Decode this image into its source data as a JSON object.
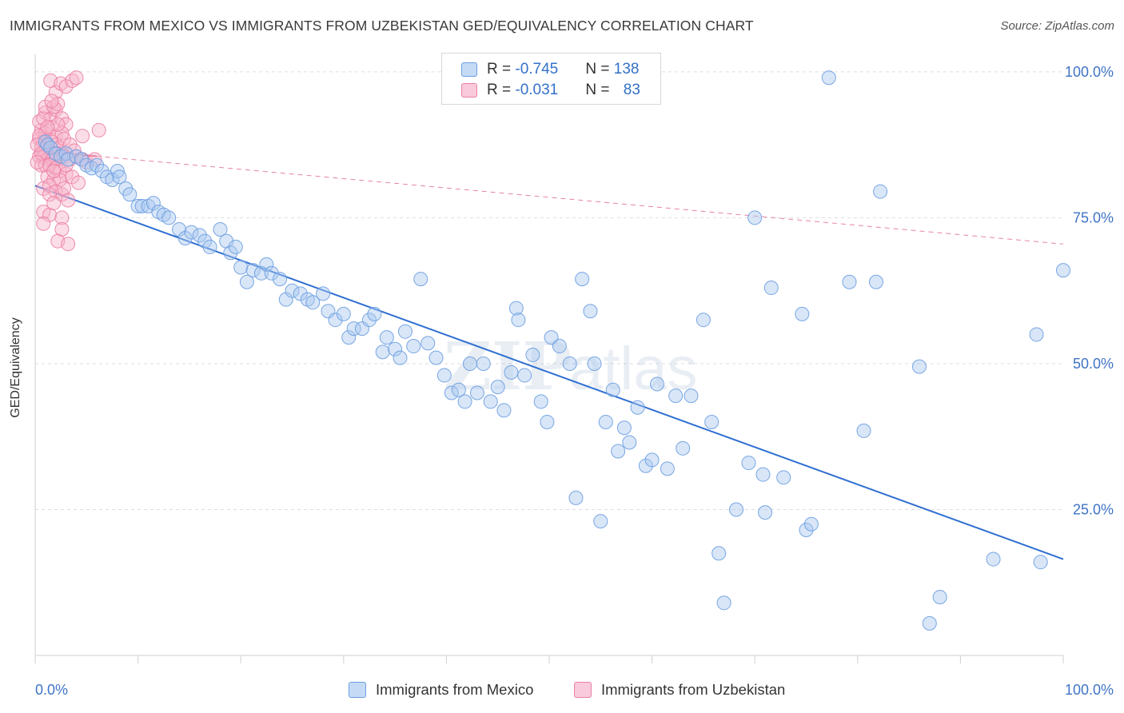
{
  "title": "IMMIGRANTS FROM MEXICO VS IMMIGRANTS FROM UZBEKISTAN GED/EQUIVALENCY CORRELATION CHART",
  "source": "Source: ZipAtlas.com",
  "watermark": {
    "zip": "ZIP",
    "atlas": "atlas"
  },
  "legend": {
    "rows": [
      {
        "r_label": "R = ",
        "r_value": "-0.745",
        "n_label": "N = ",
        "n_value": "138"
      },
      {
        "r_label": "R = ",
        "r_value": "-0.031",
        "n_label": "N = ",
        "n_value": "83"
      }
    ]
  },
  "colors": {
    "blue_fill": "#a9c8ef",
    "blue_stroke": "#6b9de0",
    "blue_line": "#2f6fd1",
    "pink_fill": "#f6b3c9",
    "pink_stroke": "#eb7fa3",
    "pink_line": "#e05a8a",
    "grid": "#dddddd",
    "tick_label": "#3f74c6"
  },
  "chart_data": {
    "type": "scatter",
    "title": "IMMIGRANTS FROM MEXICO VS IMMIGRANTS FROM UZBEKISTAN GED/EQUIVALENCY CORRELATION CHART",
    "xlabel": "",
    "ylabel": "GED/Equivalency",
    "xlim": [
      0,
      100
    ],
    "ylim": [
      0,
      103
    ],
    "x_tick_labels": [
      "0.0%",
      "100.0%"
    ],
    "y_ticks": [
      25,
      50,
      75,
      100
    ],
    "y_tick_labels": [
      "25.0%",
      "50.0%",
      "75.0%",
      "100.0%"
    ],
    "grid": true,
    "legend_position": "bottom-center",
    "series": [
      {
        "name": "Immigrants from Mexico",
        "color": "#a9c8ef",
        "trend": {
          "x": [
            0,
            100
          ],
          "y": [
            80.5,
            16.5
          ],
          "style": "solid"
        },
        "points": [
          [
            1,
            88
          ],
          [
            1.2,
            87.5
          ],
          [
            1.5,
            87
          ],
          [
            2,
            86
          ],
          [
            2.5,
            85.5
          ],
          [
            3,
            86
          ],
          [
            3.2,
            85
          ],
          [
            4,
            85.5
          ],
          [
            4.5,
            85
          ],
          [
            5,
            84
          ],
          [
            5.5,
            83.5
          ],
          [
            6,
            84
          ],
          [
            6.5,
            83
          ],
          [
            7,
            82
          ],
          [
            7.5,
            81.5
          ],
          [
            8,
            83
          ],
          [
            8.2,
            82
          ],
          [
            8.8,
            80
          ],
          [
            9.2,
            79
          ],
          [
            10,
            77
          ],
          [
            10.4,
            77
          ],
          [
            11,
            77
          ],
          [
            11.5,
            77.5
          ],
          [
            12,
            76
          ],
          [
            12.5,
            75.5
          ],
          [
            13,
            75
          ],
          [
            14,
            73
          ],
          [
            14.6,
            71.5
          ],
          [
            15.2,
            72.5
          ],
          [
            16,
            72
          ],
          [
            16.5,
            71
          ],
          [
            17,
            70
          ],
          [
            18,
            73
          ],
          [
            18.6,
            71
          ],
          [
            19,
            69
          ],
          [
            19.5,
            70
          ],
          [
            20,
            66.5
          ],
          [
            20.6,
            64
          ],
          [
            21.2,
            66
          ],
          [
            22,
            65.5
          ],
          [
            22.5,
            67
          ],
          [
            23,
            65.5
          ],
          [
            23.8,
            64.5
          ],
          [
            24.4,
            61
          ],
          [
            25,
            62.5
          ],
          [
            25.8,
            62
          ],
          [
            26.5,
            61
          ],
          [
            27,
            60.5
          ],
          [
            28,
            62
          ],
          [
            28.5,
            59
          ],
          [
            29.2,
            57.5
          ],
          [
            30,
            58.5
          ],
          [
            30.5,
            54.5
          ],
          [
            31,
            56
          ],
          [
            31.8,
            56
          ],
          [
            32.5,
            57.5
          ],
          [
            33,
            58.5
          ],
          [
            33.8,
            52
          ],
          [
            34.2,
            54.5
          ],
          [
            35,
            52.5
          ],
          [
            35.5,
            51
          ],
          [
            36,
            55.5
          ],
          [
            36.8,
            53
          ],
          [
            37.5,
            64.5
          ],
          [
            38.2,
            53.5
          ],
          [
            39,
            51
          ],
          [
            39.8,
            48
          ],
          [
            40.5,
            45
          ],
          [
            41.2,
            45.5
          ],
          [
            41.8,
            43.5
          ],
          [
            42.3,
            50
          ],
          [
            43,
            45
          ],
          [
            43.6,
            50
          ],
          [
            44.3,
            43.5
          ],
          [
            45,
            46
          ],
          [
            45.6,
            42
          ],
          [
            46.3,
            48.5
          ],
          [
            46.8,
            59.5
          ],
          [
            47,
            57.5
          ],
          [
            47.6,
            48
          ],
          [
            48.4,
            51.5
          ],
          [
            49.2,
            43.5
          ],
          [
            49.8,
            40
          ],
          [
            50.2,
            54.5
          ],
          [
            51,
            53
          ],
          [
            52,
            50
          ],
          [
            52.6,
            27
          ],
          [
            53.2,
            64.5
          ],
          [
            54,
            59
          ],
          [
            54.4,
            50
          ],
          [
            55,
            23
          ],
          [
            55.5,
            40
          ],
          [
            56.2,
            45.5
          ],
          [
            56.7,
            35
          ],
          [
            57.3,
            39
          ],
          [
            57.8,
            36.5
          ],
          [
            58.6,
            42.5
          ],
          [
            59.4,
            32.5
          ],
          [
            60,
            33.5
          ],
          [
            60.5,
            46.5
          ],
          [
            61.5,
            32
          ],
          [
            62.3,
            44.5
          ],
          [
            63,
            35.5
          ],
          [
            63.8,
            44.5
          ],
          [
            65,
            57.5
          ],
          [
            65.8,
            40
          ],
          [
            66.5,
            17.5
          ],
          [
            67,
            9
          ],
          [
            68.2,
            25
          ],
          [
            69.4,
            33
          ],
          [
            70,
            75
          ],
          [
            70.8,
            31
          ],
          [
            71,
            24.5
          ],
          [
            71.6,
            63
          ],
          [
            72.8,
            30.5
          ],
          [
            74.6,
            58.5
          ],
          [
            75,
            21.5
          ],
          [
            75.5,
            22.5
          ],
          [
            79.2,
            64
          ],
          [
            80.6,
            38.5
          ],
          [
            81.8,
            64
          ],
          [
            82.2,
            79.5
          ],
          [
            77.2,
            99
          ],
          [
            86,
            49.5
          ],
          [
            87,
            5.5
          ],
          [
            88,
            10
          ],
          [
            93.2,
            16.5
          ],
          [
            97.4,
            55
          ],
          [
            97.8,
            16
          ],
          [
            100,
            66
          ]
        ]
      },
      {
        "name": "Immigrants from Uzbekistan",
        "color": "#f6b3c9",
        "trend": {
          "x": [
            0,
            100
          ],
          "y": [
            86.5,
            70.5
          ],
          "style": "dashed",
          "solid_to": 6
        },
        "points": [
          [
            1.5,
            98.5
          ],
          [
            2,
            96.5
          ],
          [
            2.5,
            98
          ],
          [
            3,
            97.5
          ],
          [
            3.6,
            98.5
          ],
          [
            4,
            99
          ],
          [
            1,
            93
          ],
          [
            1.5,
            92
          ],
          [
            2,
            93.5
          ],
          [
            2.6,
            92
          ],
          [
            3,
            91
          ],
          [
            0.6,
            90
          ],
          [
            1,
            89.5
          ],
          [
            1.6,
            90.5
          ],
          [
            2,
            89
          ],
          [
            2.6,
            89.5
          ],
          [
            0.4,
            88.5
          ],
          [
            0.8,
            88
          ],
          [
            1.2,
            87.5
          ],
          [
            1.6,
            88
          ],
          [
            2,
            87.5
          ],
          [
            2.4,
            87
          ],
          [
            0.6,
            87
          ],
          [
            1,
            86.5
          ],
          [
            1.4,
            86.5
          ],
          [
            1.8,
            86
          ],
          [
            2.2,
            86
          ],
          [
            0.4,
            85.5
          ],
          [
            0.8,
            85.5
          ],
          [
            1.2,
            85
          ],
          [
            1.6,
            85
          ],
          [
            2,
            85
          ],
          [
            2.8,
            85.5
          ],
          [
            3.4,
            85
          ],
          [
            4,
            85.5
          ],
          [
            4.6,
            85
          ],
          [
            5,
            84.5
          ],
          [
            5.8,
            85
          ],
          [
            6.2,
            90
          ],
          [
            0.6,
            84
          ],
          [
            1,
            84
          ],
          [
            1.4,
            84
          ],
          [
            2,
            83.5
          ],
          [
            2.4,
            83
          ],
          [
            3,
            82.5
          ],
          [
            1.2,
            82
          ],
          [
            1.8,
            81.5
          ],
          [
            2.4,
            81.5
          ],
          [
            0.8,
            80
          ],
          [
            1.4,
            80.5
          ],
          [
            2,
            79.5
          ],
          [
            2.6,
            79
          ],
          [
            0.8,
            76
          ],
          [
            1.4,
            75.5
          ],
          [
            2.6,
            75
          ],
          [
            0.8,
            74
          ],
          [
            2.6,
            73
          ],
          [
            2.2,
            71
          ],
          [
            3.2,
            70.5
          ],
          [
            0.4,
            91.5
          ],
          [
            0.8,
            92
          ],
          [
            2.2,
            91
          ],
          [
            1.2,
            90.5
          ],
          [
            0.4,
            89
          ],
          [
            2.8,
            88.5
          ],
          [
            3.4,
            87.5
          ],
          [
            0.2,
            87.5
          ],
          [
            4.6,
            89
          ],
          [
            3.8,
            86.5
          ],
          [
            1,
            94
          ],
          [
            1.8,
            94
          ],
          [
            2.2,
            94.5
          ],
          [
            1.6,
            95
          ],
          [
            0.6,
            86
          ],
          [
            1.8,
            83
          ],
          [
            2.8,
            80
          ],
          [
            3.6,
            82
          ],
          [
            4.2,
            81
          ],
          [
            0.2,
            84.5
          ],
          [
            3,
            84
          ],
          [
            1.4,
            79
          ],
          [
            1.8,
            77.5
          ],
          [
            3.2,
            78
          ]
        ]
      }
    ]
  }
}
